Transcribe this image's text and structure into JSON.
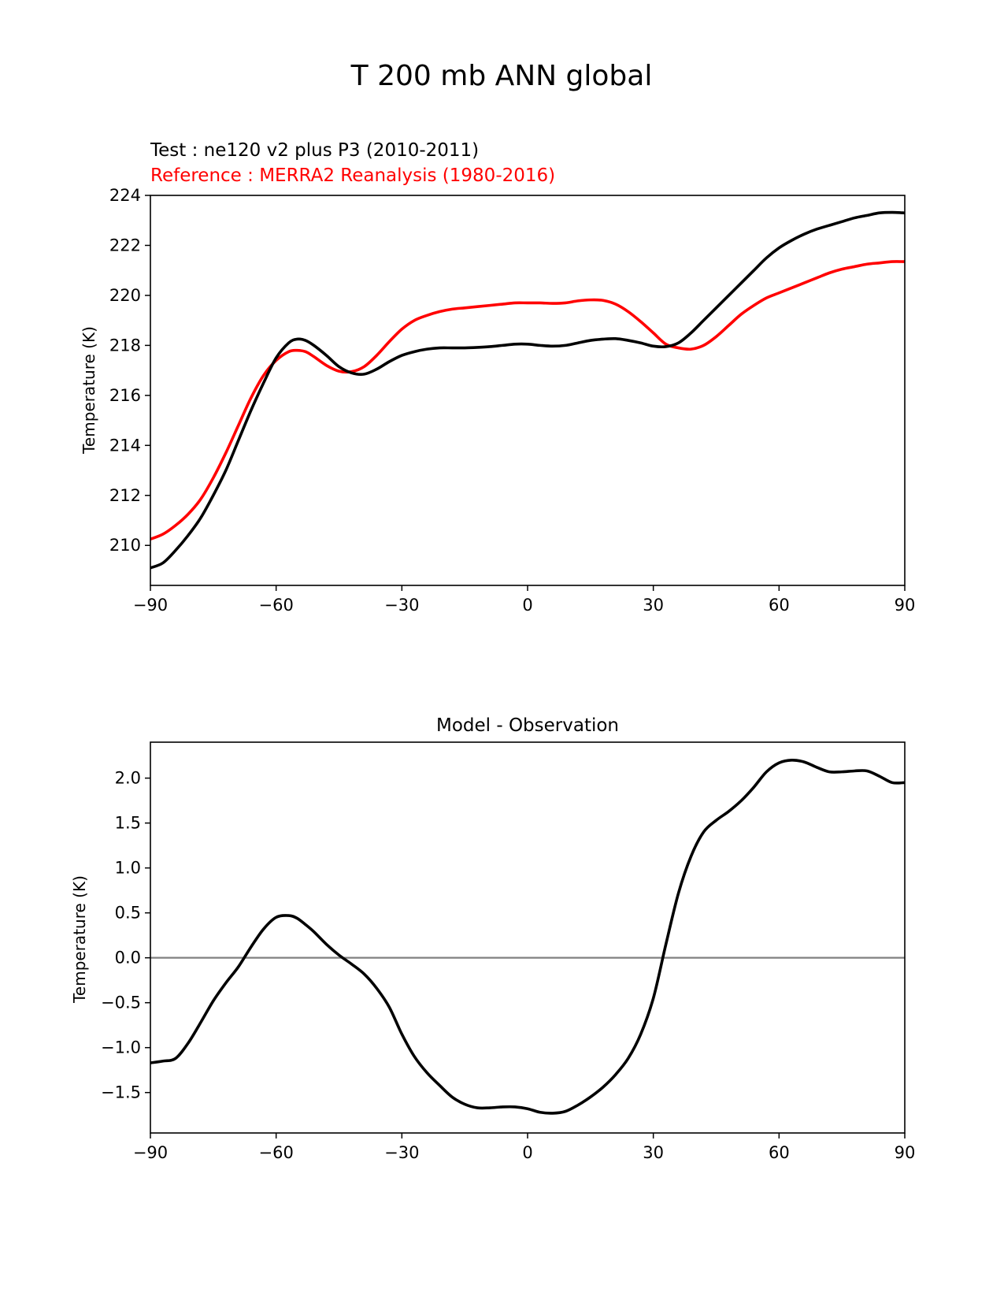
{
  "figure_title": "T 200 mb ANN global",
  "colors": {
    "test": "#000000",
    "reference": "#ff0000",
    "zero_line": "#808080"
  },
  "chart_data": [
    {
      "type": "line",
      "title_test": "Test : ne120 v2 plus P3 (2010-2011)",
      "title_reference": "Reference : MERRA2 Reanalysis (1980-2016)",
      "xlabel": "",
      "ylabel": "Temperature (K)",
      "xlim": [
        -90,
        90
      ],
      "ylim": [
        208.4,
        224.0
      ],
      "xticks": [
        -90,
        -60,
        -30,
        0,
        30,
        60,
        90
      ],
      "xtick_labels": [
        "−90",
        "−60",
        "−30",
        "0",
        "30",
        "60",
        "90"
      ],
      "yticks": [
        210,
        212,
        214,
        216,
        218,
        220,
        222,
        224
      ],
      "ytick_labels": [
        "210",
        "212",
        "214",
        "216",
        "218",
        "220",
        "222",
        "224"
      ],
      "grid": false,
      "series": [
        {
          "name": "Test : ne120 v2 plus P3 (2010-2011)",
          "color": "#000000",
          "x": [
            -90,
            -87,
            -84,
            -81,
            -78,
            -75,
            -72,
            -69,
            -66,
            -63,
            -60,
            -57,
            -55,
            -53,
            -51,
            -48,
            -45,
            -42,
            -39,
            -36,
            -33,
            -30,
            -27,
            -24,
            -21,
            -18,
            -15,
            -12,
            -9,
            -6,
            -3,
            0,
            3,
            6,
            9,
            12,
            15,
            18,
            21,
            24,
            27,
            30,
            33,
            36,
            39,
            42,
            45,
            48,
            51,
            54,
            57,
            60,
            63,
            66,
            69,
            72,
            75,
            78,
            81,
            84,
            87,
            90
          ],
          "y": [
            209.1,
            209.3,
            209.8,
            210.4,
            211.1,
            212.0,
            213.0,
            214.2,
            215.4,
            216.5,
            217.5,
            218.1,
            218.25,
            218.2,
            218.0,
            217.6,
            217.15,
            216.9,
            216.85,
            217.05,
            217.35,
            217.6,
            217.75,
            217.85,
            217.9,
            217.9,
            217.9,
            217.92,
            217.95,
            218.0,
            218.05,
            218.05,
            218.0,
            217.97,
            218.0,
            218.1,
            218.2,
            218.25,
            218.27,
            218.2,
            218.1,
            217.97,
            217.95,
            218.1,
            218.5,
            219.0,
            219.5,
            220.0,
            220.5,
            221.0,
            221.5,
            221.9,
            222.2,
            222.45,
            222.65,
            222.8,
            222.95,
            223.1,
            223.2,
            223.3,
            223.32,
            223.3
          ]
        },
        {
          "name": "Reference : MERRA2 Reanalysis (1980-2016)",
          "color": "#ff0000",
          "x": [
            -90,
            -87,
            -84,
            -81,
            -78,
            -75,
            -72,
            -69,
            -66,
            -63,
            -60,
            -57,
            -55,
            -53,
            -51,
            -48,
            -45,
            -42,
            -39,
            -36,
            -33,
            -30,
            -27,
            -24,
            -21,
            -18,
            -15,
            -12,
            -9,
            -6,
            -3,
            0,
            3,
            6,
            9,
            12,
            15,
            18,
            21,
            24,
            27,
            30,
            33,
            36,
            39,
            42,
            45,
            48,
            51,
            54,
            57,
            60,
            63,
            66,
            69,
            72,
            75,
            78,
            81,
            84,
            87,
            90
          ],
          "y": [
            210.25,
            210.45,
            210.8,
            211.25,
            211.85,
            212.7,
            213.7,
            214.8,
            215.9,
            216.8,
            217.4,
            217.75,
            217.8,
            217.75,
            217.55,
            217.2,
            216.97,
            216.95,
            217.15,
            217.6,
            218.15,
            218.65,
            219.0,
            219.2,
            219.35,
            219.45,
            219.5,
            219.55,
            219.6,
            219.65,
            219.7,
            219.7,
            219.7,
            219.68,
            219.7,
            219.78,
            219.82,
            219.8,
            219.65,
            219.35,
            218.95,
            218.5,
            218.05,
            217.9,
            217.85,
            218.0,
            218.35,
            218.8,
            219.25,
            219.6,
            219.9,
            220.1,
            220.3,
            220.5,
            220.7,
            220.9,
            221.05,
            221.15,
            221.25,
            221.3,
            221.35,
            221.35
          ]
        }
      ]
    },
    {
      "type": "line",
      "title": "Model - Observation",
      "xlabel": "",
      "ylabel": "Temperature (K)",
      "xlim": [
        -90,
        90
      ],
      "ylim": [
        -1.95,
        2.4
      ],
      "xticks": [
        -90,
        -60,
        -30,
        0,
        30,
        60,
        90
      ],
      "xtick_labels": [
        "−90",
        "−60",
        "−30",
        "0",
        "30",
        "60",
        "90"
      ],
      "yticks": [
        -1.5,
        -1.0,
        -0.5,
        0.0,
        0.5,
        1.0,
        1.5,
        2.0
      ],
      "ytick_labels": [
        "−1.5",
        "−1.0",
        "−0.5",
        "0.0",
        "0.5",
        "1.0",
        "1.5",
        "2.0"
      ],
      "grid": false,
      "zero_line": true,
      "series": [
        {
          "color": "#000000",
          "x": [
            -90,
            -87,
            -84,
            -81,
            -78,
            -75,
            -72,
            -69,
            -66,
            -63,
            -60,
            -57,
            -55,
            -53,
            -51,
            -48,
            -45,
            -42,
            -39,
            -36,
            -33,
            -30,
            -27,
            -24,
            -21,
            -18,
            -15,
            -12,
            -9,
            -6,
            -3,
            0,
            3,
            6,
            9,
            12,
            15,
            18,
            21,
            24,
            27,
            30,
            33,
            36,
            39,
            42,
            45,
            48,
            51,
            54,
            57,
            60,
            63,
            66,
            69,
            72,
            75,
            78,
            81,
            84,
            87,
            90
          ],
          "y": [
            -1.17,
            -1.15,
            -1.12,
            -0.95,
            -0.72,
            -0.48,
            -0.28,
            -0.1,
            0.12,
            0.32,
            0.45,
            0.47,
            0.44,
            0.37,
            0.29,
            0.15,
            0.03,
            -0.07,
            -0.18,
            -0.34,
            -0.55,
            -0.85,
            -1.1,
            -1.28,
            -1.42,
            -1.55,
            -1.63,
            -1.67,
            -1.67,
            -1.66,
            -1.66,
            -1.68,
            -1.72,
            -1.73,
            -1.71,
            -1.64,
            -1.55,
            -1.44,
            -1.3,
            -1.12,
            -0.85,
            -0.45,
            0.15,
            0.72,
            1.13,
            1.4,
            1.53,
            1.63,
            1.75,
            1.9,
            2.07,
            2.17,
            2.2,
            2.18,
            2.12,
            2.07,
            2.07,
            2.08,
            2.08,
            2.02,
            1.95,
            1.95
          ]
        }
      ]
    }
  ]
}
